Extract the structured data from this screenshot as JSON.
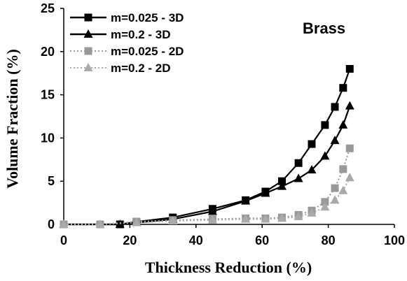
{
  "chart_data": {
    "type": "line",
    "title": "",
    "annotation": "Brass",
    "xlabel": "Thickness Reduction (%)",
    "ylabel": "Volume Fraction (%)",
    "xlim": [
      0,
      100
    ],
    "ylim": [
      0,
      25
    ],
    "xticks": [
      "0",
      "20",
      "40",
      "60",
      "80",
      "100"
    ],
    "yticks": [
      "0",
      "5",
      "10",
      "15",
      "20",
      "25"
    ],
    "grid": false,
    "legend_position": "top-left",
    "series": [
      {
        "name": "m=0.025 - 3D",
        "marker": "square",
        "line_style": "solid",
        "color": "#000000",
        "x": [
          0,
          17,
          22,
          33,
          45,
          55,
          61,
          66,
          71,
          75,
          79,
          82,
          84.5,
          86.5
        ],
        "y": [
          0,
          0,
          0.3,
          0.8,
          1.8,
          2.8,
          3.8,
          5.0,
          7.1,
          9.3,
          11.5,
          13.6,
          15.8,
          18.0
        ]
      },
      {
        "name": "m=0.2 - 3D",
        "marker": "triangle",
        "line_style": "solid",
        "color": "#000000",
        "x": [
          0,
          17,
          22,
          33,
          45,
          55,
          61,
          66,
          71,
          75,
          79,
          82,
          84.5,
          86.5
        ],
        "y": [
          0,
          0,
          0.2,
          0.6,
          1.5,
          2.7,
          3.6,
          4.4,
          5.3,
          6.3,
          7.9,
          9.7,
          11.5,
          13.7
        ]
      },
      {
        "name": "m=0.025 - 2D",
        "marker": "square",
        "line_style": "dotted",
        "color": "#999999",
        "x": [
          0,
          11,
          22,
          33,
          45,
          55,
          61,
          66,
          71,
          75,
          79,
          82,
          84.5,
          86.5
        ],
        "y": [
          0,
          0,
          0.3,
          0.5,
          0.6,
          0.7,
          0.7,
          0.8,
          1.1,
          1.6,
          2.6,
          4.2,
          6.4,
          8.8
        ]
      },
      {
        "name": "m=0.2 - 2D",
        "marker": "triangle",
        "line_style": "dotted",
        "color": "#aaaaaa",
        "x": [
          0,
          11,
          22,
          33,
          45,
          55,
          61,
          66,
          71,
          75,
          79,
          82,
          84.5,
          86.5
        ],
        "y": [
          0,
          0,
          0.2,
          0.4,
          0.5,
          0.6,
          0.6,
          0.7,
          0.9,
          1.3,
          2.0,
          2.8,
          3.9,
          5.4
        ]
      }
    ]
  }
}
